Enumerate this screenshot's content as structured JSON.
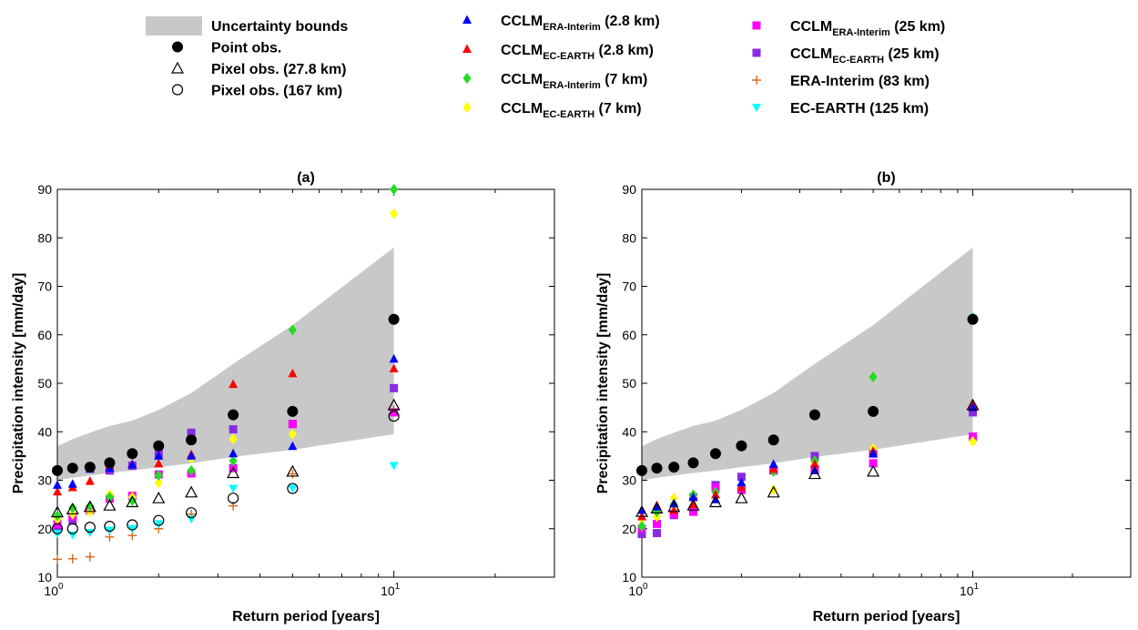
{
  "legend": {
    "items": [
      {
        "key": "bounds",
        "label": "Uncertainty bounds",
        "sub": "",
        "tail": "",
        "marker": "band",
        "color": "#c8c8c8"
      },
      {
        "key": "point",
        "label": "Point obs.",
        "sub": "",
        "tail": "",
        "marker": "circle-filled",
        "color": "#000000"
      },
      {
        "key": "pix278",
        "label": "Pixel obs. (27.8 km)",
        "sub": "",
        "tail": "",
        "marker": "triangle-open",
        "color": "#000000"
      },
      {
        "key": "pix167",
        "label": "Pixel obs. (167 km)",
        "sub": "",
        "tail": "",
        "marker": "circle-open",
        "color": "#000000"
      },
      {
        "key": "era28",
        "label": "CCLM",
        "sub": "ERA-Interim",
        "tail": " (2.8 km)",
        "marker": "triangle",
        "color": "#0000ff"
      },
      {
        "key": "ec28",
        "label": "CCLM",
        "sub": "EC-EARTH",
        "tail": " (2.8 km)",
        "marker": "triangle",
        "color": "#ff0000"
      },
      {
        "key": "era7",
        "label": "CCLM",
        "sub": "ERA-Interim",
        "tail": " (7 km)",
        "marker": "diamond",
        "color": "#22dd22"
      },
      {
        "key": "ec7",
        "label": "CCLM",
        "sub": "EC-EARTH",
        "tail": " (7 km)",
        "marker": "diamond",
        "color": "#ffff00"
      },
      {
        "key": "era25",
        "label": "CCLM",
        "sub": "ERA-Interim",
        "tail": " (25 km)",
        "marker": "square",
        "color": "#ff00ff"
      },
      {
        "key": "ec25",
        "label": "CCLM",
        "sub": "EC-EARTH",
        "tail": " (25 km)",
        "marker": "square",
        "color": "#8a2be2"
      },
      {
        "key": "eraint",
        "label": "ERA-Interim (83 km)",
        "sub": "",
        "tail": "",
        "marker": "plus",
        "color": "#d2691e"
      },
      {
        "key": "ecearth",
        "label": "EC-EARTH (125 km)",
        "sub": "",
        "tail": "",
        "marker": "triangle-down",
        "color": "#00ffff"
      }
    ]
  },
  "chart_data": [
    {
      "type": "scatter",
      "title": "(a)",
      "xlabel": "Return period [years]",
      "ylabel": "Precipitation intensity [mm/day]",
      "xscale": "log",
      "xlim": [
        1,
        30
      ],
      "ylim": [
        10,
        90
      ],
      "yticks": [
        10,
        20,
        30,
        40,
        50,
        60,
        70,
        80,
        90
      ],
      "xticks": [
        {
          "value": 1,
          "base": "10",
          "exp": "0"
        },
        {
          "value": 10,
          "base": "10",
          "exp": "1"
        }
      ],
      "grid": false,
      "band": {
        "x": [
          1,
          1.11,
          1.25,
          1.43,
          1.67,
          2,
          2.5,
          3.33,
          5,
          10
        ],
        "lower": [
          30,
          30.5,
          31,
          31.5,
          32,
          32.7,
          33.5,
          34.8,
          36.3,
          39.5
        ],
        "upper": [
          37,
          38.5,
          39.8,
          41.2,
          42.3,
          44.5,
          48,
          54,
          62,
          78
        ]
      },
      "series": [
        {
          "key": "point",
          "x": [
            1,
            1.11,
            1.25,
            1.43,
            1.67,
            2,
            2.5,
            3.33,
            5,
            10
          ],
          "y": [
            32,
            32.5,
            32.7,
            33.6,
            35.5,
            37.1,
            38.3,
            43.5,
            44.2,
            63.2
          ]
        },
        {
          "key": "pix278",
          "x": [
            1,
            1.11,
            1.25,
            1.43,
            1.67,
            2,
            2.5,
            3.33,
            5,
            10
          ],
          "y": [
            23.4,
            24,
            24.5,
            24.8,
            25.5,
            26.3,
            27.5,
            31.5,
            31.8,
            45.5
          ]
        },
        {
          "key": "pix167",
          "x": [
            1,
            1.11,
            1.25,
            1.43,
            1.67,
            2,
            2.5,
            3.33,
            5,
            10
          ],
          "y": [
            20,
            20,
            20.3,
            20.5,
            20.8,
            21.7,
            23.3,
            26.3,
            28.3,
            43.2
          ]
        },
        {
          "key": "era28",
          "x": [
            1,
            1.11,
            1.25,
            1.43,
            1.67,
            2,
            2.5,
            3.33,
            5,
            10
          ],
          "y": [
            29,
            29.2,
            32.3,
            32.5,
            33.2,
            35,
            35,
            35.5,
            37,
            55
          ]
        },
        {
          "key": "ec28",
          "x": [
            1,
            1.11,
            1.25,
            1.43,
            1.67,
            2,
            2.5,
            3.33,
            5,
            10
          ],
          "y": [
            27.6,
            28.5,
            29.8,
            33,
            33.3,
            33.4,
            35.3,
            49.8,
            52,
            53
          ]
        },
        {
          "key": "era7",
          "x": [
            1,
            1.11,
            1.25,
            1.43,
            1.67,
            2,
            2.5,
            3.33,
            5,
            10
          ],
          "y": [
            22.7,
            24.3,
            24.7,
            26.5,
            25.8,
            31,
            32,
            34,
            61,
            90
          ]
        },
        {
          "key": "ec7",
          "x": [
            1,
            1.11,
            1.25,
            1.43,
            1.67,
            2,
            2.5,
            3.33,
            5,
            10
          ],
          "y": [
            22,
            23,
            23.5,
            27,
            26.5,
            29.5,
            34.5,
            38.5,
            39.5,
            85
          ]
        },
        {
          "key": "era25",
          "x": [
            1,
            1.11,
            1.25,
            1.43,
            1.67,
            2,
            2.5,
            3.33,
            5,
            10
          ],
          "y": [
            21,
            22.5,
            23.8,
            26.2,
            26.8,
            31.2,
            31.4,
            32.5,
            41.6,
            44
          ]
        },
        {
          "key": "ec25",
          "x": [
            1,
            1.11,
            1.25,
            1.43,
            1.67,
            2,
            2.5,
            3.33,
            5,
            10
          ],
          "y": [
            20.5,
            21.7,
            24,
            32,
            33,
            35.5,
            39.8,
            40.5,
            41.6,
            49
          ]
        },
        {
          "key": "eraint",
          "x": [
            1,
            1.11,
            1.25,
            1.43,
            1.67,
            2,
            2.5,
            3.33,
            5,
            10
          ],
          "y": [
            13.7,
            13.8,
            14.2,
            18.3,
            18.6,
            20,
            23,
            24.7,
            31.3,
            44.5
          ]
        },
        {
          "key": "ecearth",
          "x": [
            1,
            1.11,
            1.25,
            1.43,
            1.67,
            2,
            2.5,
            3.33,
            5,
            10
          ],
          "y": [
            19,
            18.7,
            19.2,
            19.7,
            20,
            21,
            22,
            28.3,
            28.3,
            33
          ]
        }
      ]
    },
    {
      "type": "scatter",
      "title": "(b)",
      "xlabel": "Return period [years]",
      "ylabel": "Precipitation intensity [mm/day]",
      "xscale": "log",
      "xlim": [
        1,
        30
      ],
      "ylim": [
        10,
        90
      ],
      "yticks": [
        10,
        20,
        30,
        40,
        50,
        60,
        70,
        80,
        90
      ],
      "xticks": [
        {
          "value": 1,
          "base": "10",
          "exp": "0"
        },
        {
          "value": 10,
          "base": "10",
          "exp": "1"
        }
      ],
      "grid": false,
      "band": {
        "x": [
          1,
          1.11,
          1.25,
          1.43,
          1.67,
          2,
          2.5,
          3.33,
          5,
          10
        ],
        "lower": [
          30,
          30.5,
          31,
          31.5,
          32,
          32.7,
          33.5,
          34.8,
          36.3,
          39.5
        ],
        "upper": [
          37,
          38.5,
          39.8,
          41.2,
          42.3,
          44.5,
          48,
          54,
          62,
          78
        ]
      },
      "series": [
        {
          "key": "point",
          "x": [
            1,
            1.11,
            1.25,
            1.43,
            1.67,
            2,
            2.5,
            3.33,
            5,
            10
          ],
          "y": [
            32,
            32.5,
            32.7,
            33.6,
            35.5,
            37.1,
            38.3,
            43.5,
            44.2,
            63.2
          ]
        },
        {
          "key": "pix278",
          "x": [
            1,
            1.11,
            1.25,
            1.43,
            1.67,
            2,
            2.5,
            3.33,
            5,
            10
          ],
          "y": [
            23.5,
            24.2,
            24.5,
            24.8,
            25.5,
            26.3,
            27.5,
            31.3,
            31.8,
            45.5
          ]
        },
        {
          "key": "era28",
          "x": [
            1,
            1.11,
            1.25,
            1.43,
            1.67,
            2,
            2.5,
            3.33,
            5,
            10
          ],
          "y": [
            23.8,
            24.5,
            25.2,
            26.5,
            26,
            29.5,
            33.3,
            32,
            35.5,
            45
          ]
        },
        {
          "key": "ec28",
          "x": [
            1,
            1.11,
            1.25,
            1.43,
            1.67,
            2,
            2.5,
            3.33,
            5,
            10
          ],
          "y": [
            22.5,
            24.8,
            23.8,
            25,
            27,
            28.5,
            32.3,
            33.3,
            36,
            45.5
          ]
        },
        {
          "key": "era7",
          "x": [
            1,
            1.11,
            1.25,
            1.43,
            1.67,
            2,
            2.5,
            3.33,
            5,
            10
          ],
          "y": [
            20.5,
            23.5,
            25,
            27,
            27.5,
            29,
            31.8,
            34,
            51.3,
            63.5
          ]
        },
        {
          "key": "ec7",
          "x": [
            1,
            1.11,
            1.25,
            1.43,
            1.67,
            2,
            2.5,
            3.33,
            5,
            10
          ],
          "y": [
            22,
            22.5,
            26.3,
            26.7,
            27.5,
            29,
            28,
            33.5,
            36.5,
            38
          ]
        },
        {
          "key": "era25",
          "x": [
            1,
            1.11,
            1.25,
            1.43,
            1.67,
            2,
            2.5,
            3.33,
            5,
            10
          ],
          "y": [
            20,
            21,
            23,
            23.5,
            28.5,
            28,
            32,
            32.3,
            33.5,
            39
          ]
        },
        {
          "key": "ec25",
          "x": [
            1,
            1.11,
            1.25,
            1.43,
            1.67,
            2,
            2.5,
            3.33,
            5,
            10
          ],
          "y": [
            18.9,
            19.1,
            22.8,
            26.5,
            29,
            30.7,
            32,
            35,
            35.5,
            44
          ]
        }
      ]
    }
  ]
}
